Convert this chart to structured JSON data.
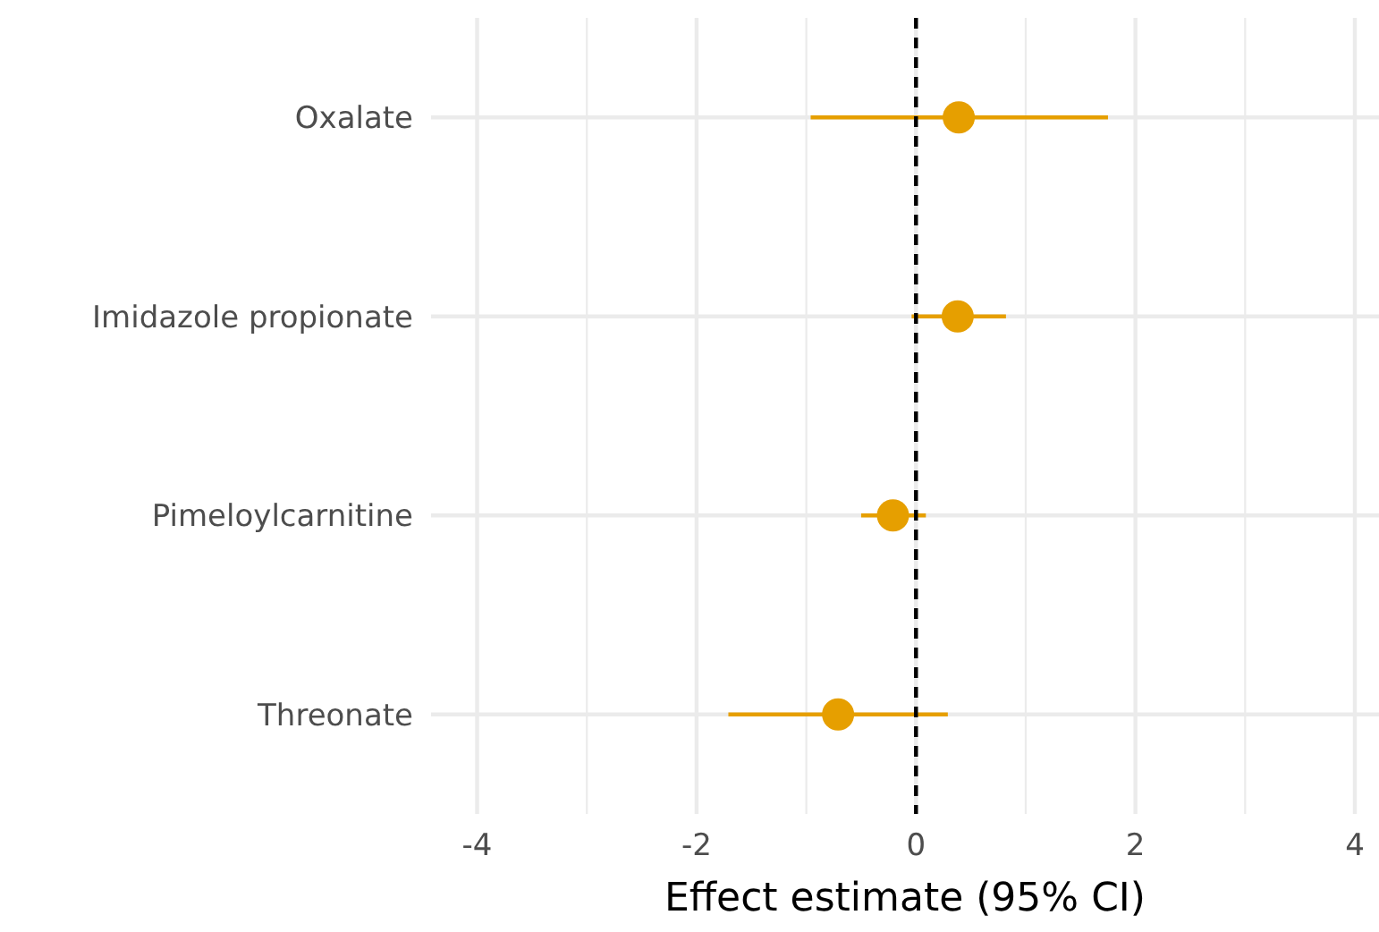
{
  "chart_data": {
    "type": "scatter",
    "orientation": "horizontal",
    "xlabel": "Effect estimate (95% CI)",
    "categories": [
      "Oxalate",
      "Imidazole propionate",
      "Pimeloylcarnitine",
      "Threonate"
    ],
    "series": [
      {
        "color": "#e69f00",
        "values": [
          0.39,
          0.38,
          -0.21,
          -0.71
        ],
        "errors": [
          [
            -0.96,
            1.75
          ],
          [
            -0.04,
            0.82
          ],
          [
            -0.5,
            0.09
          ],
          [
            -1.71,
            0.29
          ]
        ]
      }
    ],
    "xlim": [
      -4.42,
      4.22
    ],
    "xticks": [
      -4,
      -2,
      0,
      2,
      4
    ],
    "grid": true,
    "marker": "circle",
    "ref_lines": [
      {
        "axis": "x",
        "value": 0,
        "color": "#000000",
        "line_style": "dashed"
      }
    ]
  }
}
